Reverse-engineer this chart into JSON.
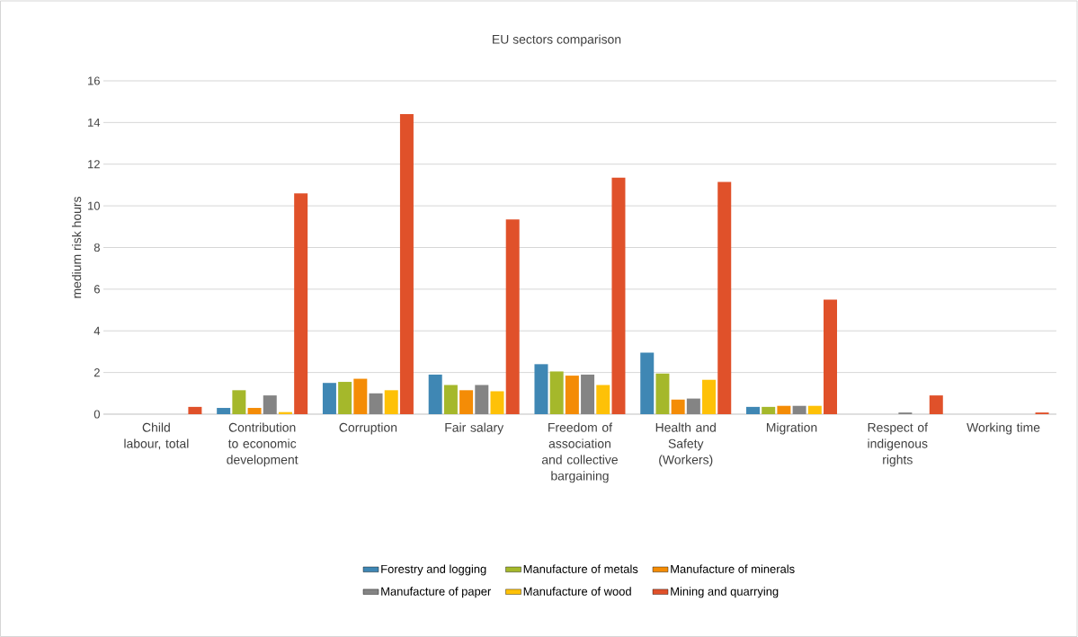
{
  "chart_data": {
    "type": "bar",
    "title": "EU sectors comparison",
    "ylabel": "medium risk hours",
    "categories": [
      "Child labour, total",
      "Contribution to economic development",
      "Corruption",
      "Fair salary",
      "Freedom of association and collective bargaining",
      "Health and Safety (Workers)",
      "Migration",
      "Respect of indigenous rights",
      "Working time"
    ],
    "series": [
      {
        "name": "Forestry and logging",
        "color": "#3f87b4",
        "values": [
          0,
          0.3,
          1.5,
          1.9,
          2.4,
          2.95,
          0.35,
          0,
          0
        ]
      },
      {
        "name": "Manufacture of metals",
        "color": "#a5b82b",
        "values": [
          0,
          1.15,
          1.55,
          1.4,
          2.05,
          1.95,
          0.35,
          0,
          0
        ]
      },
      {
        "name": "Manufacture of minerals",
        "color": "#f48c06",
        "values": [
          0,
          0.3,
          1.7,
          1.15,
          1.85,
          0.7,
          0.4,
          0,
          0
        ]
      },
      {
        "name": "Manufacture of paper",
        "color": "#848484",
        "values": [
          0,
          0.9,
          1.0,
          1.4,
          1.9,
          0.75,
          0.4,
          0.08,
          0
        ]
      },
      {
        "name": "Manufacture of wood",
        "color": "#fec107",
        "values": [
          0,
          0.1,
          1.15,
          1.1,
          1.4,
          1.65,
          0.4,
          0,
          0
        ]
      },
      {
        "name": "Mining and quarrying",
        "color": "#e0512a",
        "values": [
          0.35,
          10.6,
          14.4,
          9.35,
          11.35,
          11.15,
          5.5,
          0.9,
          0.08
        ]
      }
    ],
    "ylim": [
      0,
      16
    ],
    "yticks": [
      0,
      2,
      4,
      6,
      8,
      10,
      12,
      14,
      16
    ],
    "grid": "y",
    "legend": "bottom"
  }
}
